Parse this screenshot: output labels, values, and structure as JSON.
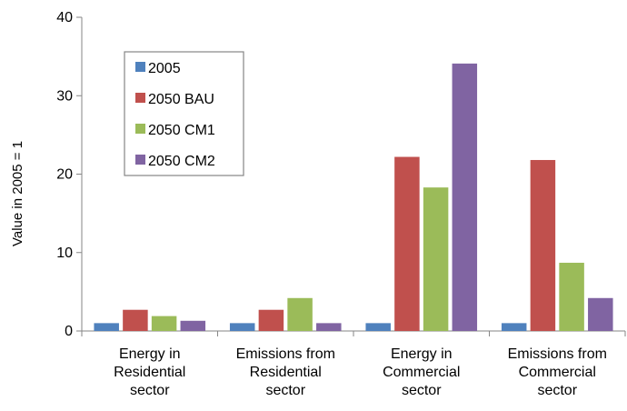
{
  "chart_data": {
    "type": "bar",
    "title": "",
    "xlabel": "",
    "ylabel": "Value in 2005 = 1",
    "ylim": [
      0,
      40
    ],
    "yticks": [
      0,
      10,
      20,
      30,
      40
    ],
    "grid": false,
    "legend_position": "top-left",
    "categories": [
      [
        "Energy in",
        "Residential",
        "sector"
      ],
      [
        "Emissions from",
        "Residential",
        "sector"
      ],
      [
        "Energy in",
        "Commercial",
        "sector"
      ],
      [
        "Emissions from",
        "Commercial",
        "sector"
      ]
    ],
    "series": [
      {
        "name": "2005",
        "color": "#4f81bd",
        "values": [
          1.0,
          1.0,
          1.0,
          1.0
        ]
      },
      {
        "name": "2050 BAU",
        "color": "#c0504d",
        "values": [
          2.7,
          2.7,
          22.2,
          21.8
        ]
      },
      {
        "name": "2050 CM1",
        "color": "#9bbb59",
        "values": [
          1.9,
          4.2,
          18.3,
          8.7
        ]
      },
      {
        "name": "2050 CM2",
        "color": "#8064a2",
        "values": [
          1.3,
          1.0,
          34.1,
          4.2
        ]
      }
    ]
  }
}
